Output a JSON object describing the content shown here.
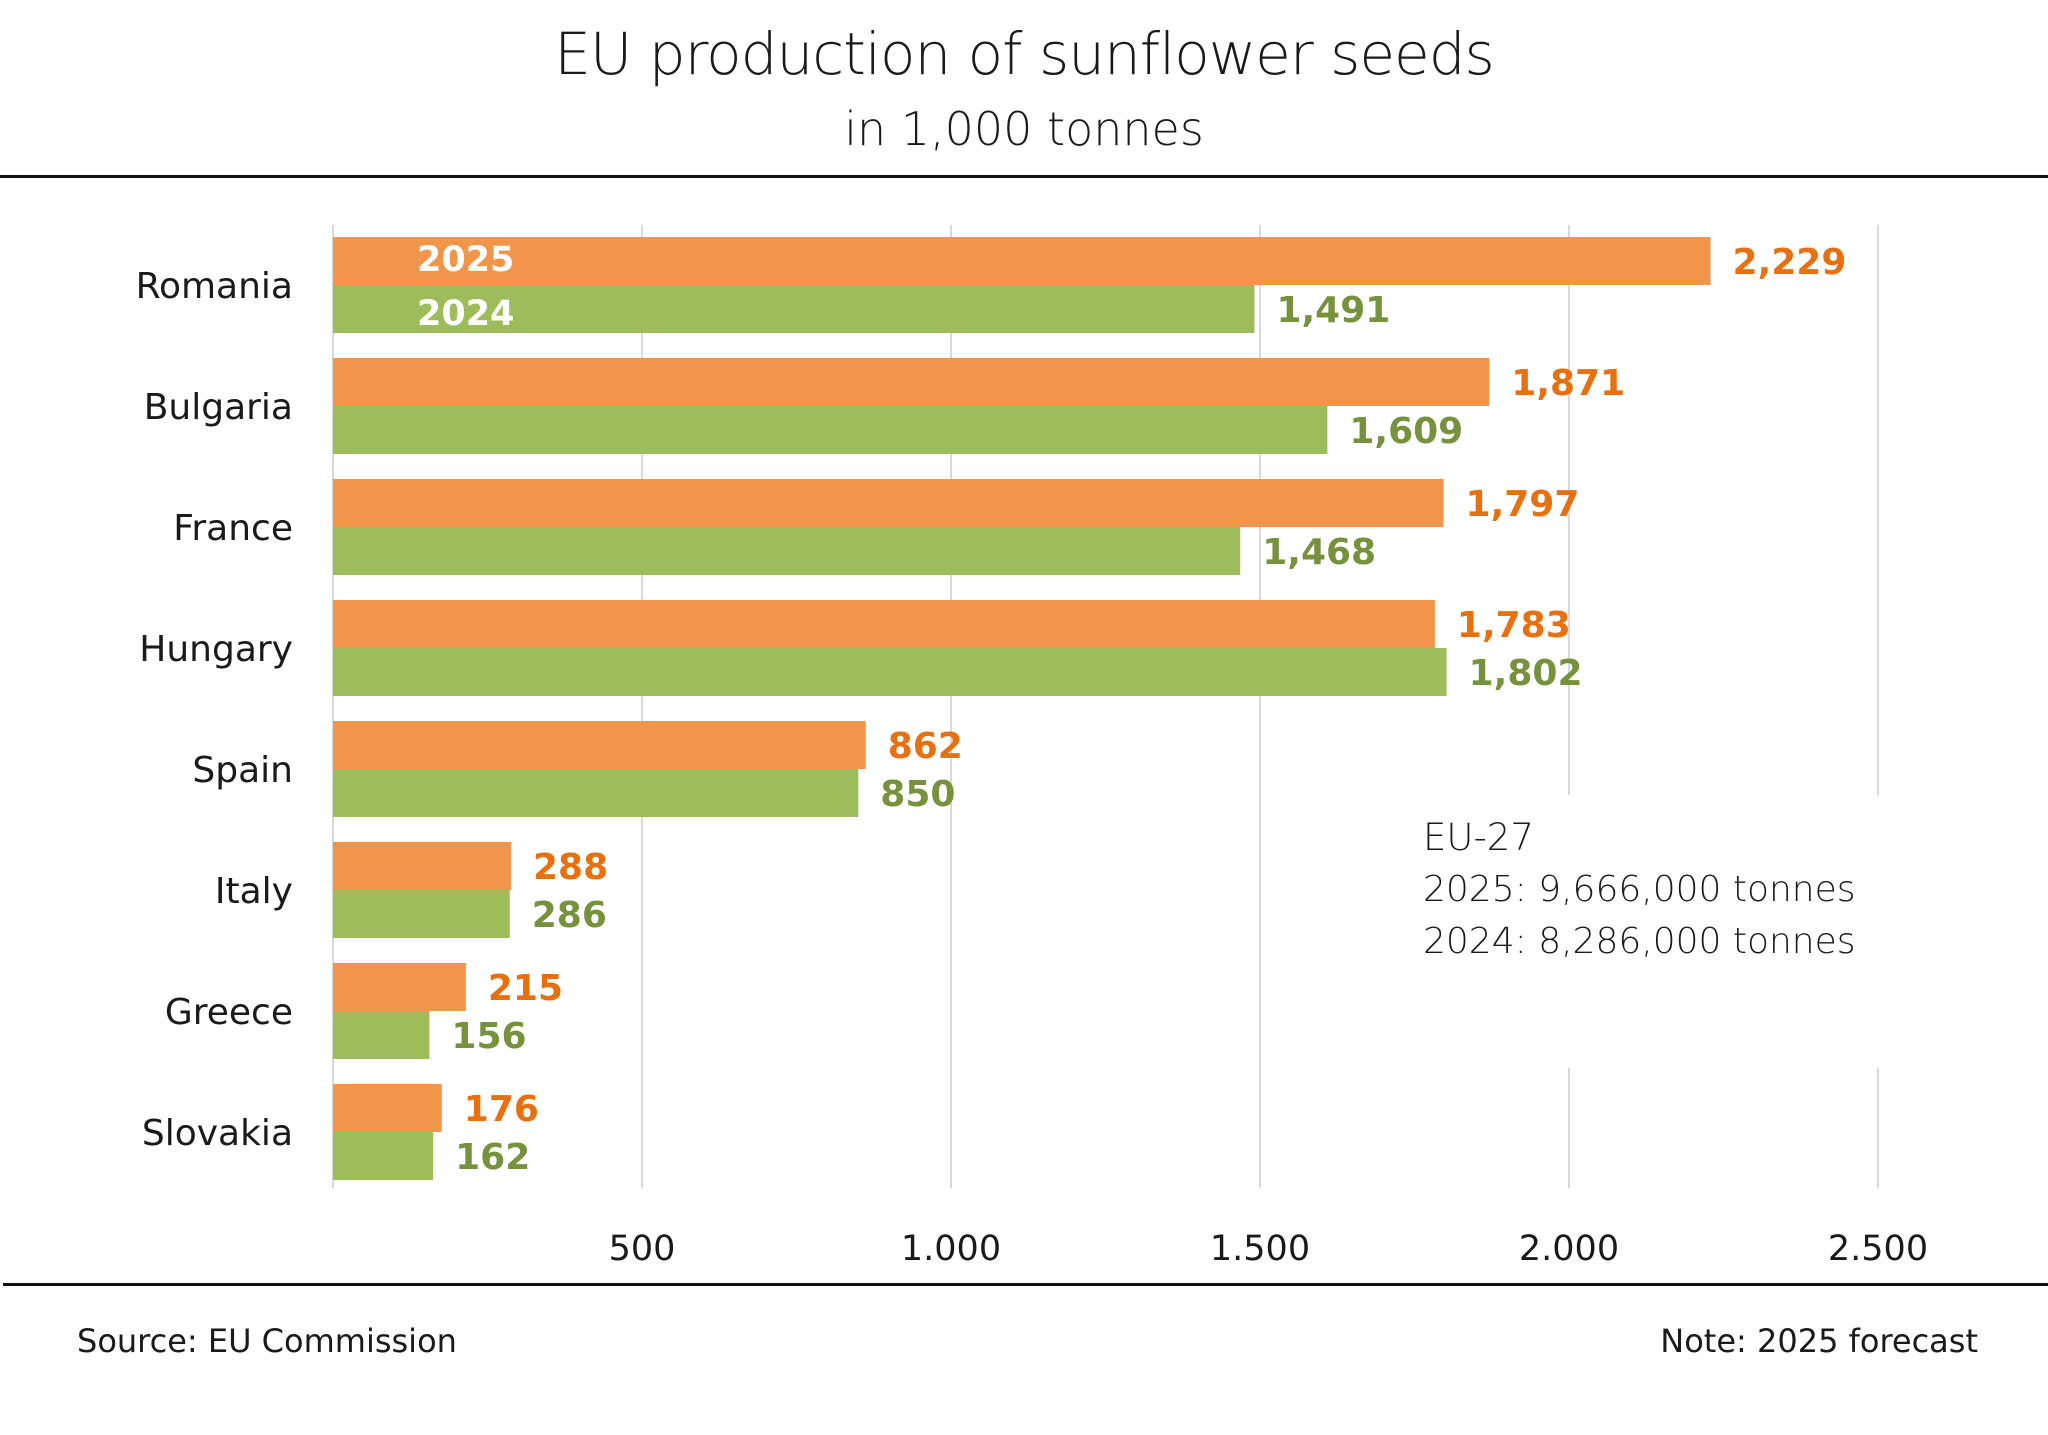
{
  "chart_data": {
    "type": "bar",
    "orientation": "horizontal",
    "title": "EU production of sunflower seeds",
    "subtitle": "in 1,000 tonnes",
    "xlabel": "",
    "ylabel": "",
    "categories": [
      "Romania",
      "Bulgaria",
      "France",
      "Hungary",
      "Spain",
      "Italy",
      "Greece",
      "Slovakia"
    ],
    "series": [
      {
        "name": "2025",
        "color": "#F0954A",
        "label_color": "#E8700F",
        "values": [
          2229,
          1871,
          1797,
          1783,
          862,
          288,
          215,
          176
        ],
        "labels": [
          "2,229",
          "1,871",
          "1,797",
          "1,783",
          "862",
          "288",
          "215",
          "176"
        ]
      },
      {
        "name": "2024",
        "color": "#9DBD5B",
        "label_color": "#76923C",
        "values": [
          1491,
          1609,
          1468,
          1802,
          850,
          286,
          156,
          162
        ],
        "labels": [
          "1,491",
          "1,609",
          "1,468",
          "1,802",
          "850",
          "286",
          "156",
          "162"
        ]
      }
    ],
    "xlim": [
      0,
      2500
    ],
    "xticks": [
      500,
      1000,
      1500,
      2000,
      2500
    ],
    "xtick_labels": [
      "500",
      "1.000",
      "1.500",
      "2.000",
      "2.500"
    ],
    "grid": true,
    "legend": "inside first bar pair (left)",
    "annotation": {
      "title": "EU-27",
      "lines": [
        "2025: 9,666,000 tonnes",
        "2024: 8,286,000 tonnes"
      ]
    }
  },
  "footer": {
    "source": "Source:  EU Commission",
    "note": "Note: 2025 forecast"
  },
  "colors": {
    "gridline": "#D9D9D9",
    "rule": "#111111"
  }
}
